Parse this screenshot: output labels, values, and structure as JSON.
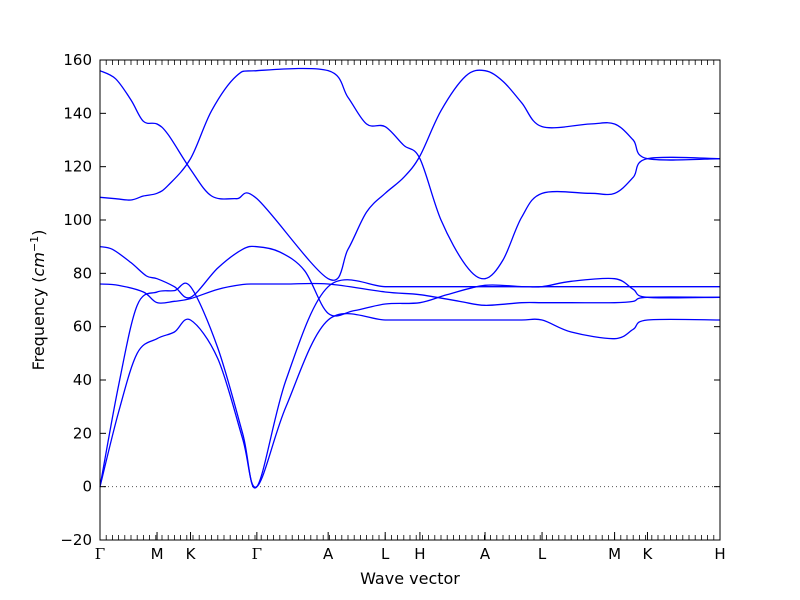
{
  "chart_data": {
    "type": "line",
    "xlabel": "Wave vector",
    "ylabel": "Frequency",
    "ylabel_unit": "cm",
    "ylabel_unit_exp": "−1",
    "ylim": [
      -20,
      160
    ],
    "yticks": [
      -20,
      0,
      20,
      40,
      60,
      80,
      100,
      120,
      140,
      160
    ],
    "ytick_labels": [
      "−20",
      "0",
      "20",
      "40",
      "60",
      "80",
      "100",
      "120",
      "140",
      "160"
    ],
    "xlim": [
      0,
      1
    ],
    "xticks": [
      {
        "pos": 0.0,
        "label": "Γ"
      },
      {
        "pos": 0.092,
        "label": "M"
      },
      {
        "pos": 0.146,
        "label": "K"
      },
      {
        "pos": 0.253,
        "label": "Γ"
      },
      {
        "pos": 0.368,
        "label": "A"
      },
      {
        "pos": 0.46,
        "label": "L"
      },
      {
        "pos": 0.516,
        "label": "H"
      },
      {
        "pos": 0.621,
        "label": "A"
      },
      {
        "pos": 0.713,
        "label": "L"
      },
      {
        "pos": 0.83,
        "label": "M"
      },
      {
        "pos": 0.883,
        "label": "K"
      },
      {
        "pos": 1.0,
        "label": "H"
      }
    ],
    "zero_line": true,
    "line_color": "#0000ff",
    "zero_line_color": "#555555",
    "series": [
      {
        "x": [
          0,
          0.025,
          0.05,
          0.07,
          0.092,
          0.11,
          0.146,
          0.18,
          0.22,
          0.253,
          0.368,
          0.4,
          0.43,
          0.46,
          0.49,
          0.516,
          0.55,
          0.59,
          0.621,
          0.65,
          0.68,
          0.713,
          0.79,
          0.83,
          0.86,
          0.883,
          1.0
        ],
        "values": [
          156,
          153,
          145,
          137,
          136,
          132,
          119,
          109,
          108,
          108,
          78,
          89,
          103,
          110,
          116,
          124,
          141,
          154,
          156,
          152,
          144,
          135,
          136,
          136,
          130,
          123,
          123
        ]
      },
      {
        "x": [
          0,
          0.025,
          0.05,
          0.07,
          0.092,
          0.11,
          0.146,
          0.18,
          0.22,
          0.253,
          0.368,
          0.4,
          0.43,
          0.46,
          0.49,
          0.516,
          0.55,
          0.59,
          0.621,
          0.65,
          0.68,
          0.713,
          0.79,
          0.83,
          0.86,
          0.883,
          1.0
        ],
        "values": [
          108.5,
          108,
          107.5,
          109,
          110,
          113,
          123,
          141,
          154,
          156,
          156,
          146,
          136,
          135,
          128,
          123,
          100,
          83,
          78,
          85,
          101,
          110,
          110,
          110,
          116,
          123,
          123
        ]
      },
      {
        "x": [
          0,
          0.02,
          0.05,
          0.075,
          0.092,
          0.12,
          0.146,
          0.19,
          0.23,
          0.253,
          0.29,
          0.33,
          0.368,
          0.41,
          0.46,
          0.516,
          0.56,
          0.621,
          0.68,
          0.713,
          0.77,
          0.83,
          0.86,
          0.883,
          1.0
        ],
        "values": [
          90,
          89,
          84,
          79,
          78,
          75,
          71,
          82,
          89,
          90,
          88,
          81,
          65,
          66,
          68.5,
          69,
          72,
          75.5,
          75,
          75,
          75,
          75,
          75,
          75,
          75
        ]
      },
      {
        "x": [
          0,
          0.03,
          0.07,
          0.092,
          0.12,
          0.146,
          0.19,
          0.23,
          0.253,
          0.3,
          0.368,
          0.46,
          0.516,
          0.58,
          0.621,
          0.68,
          0.713,
          0.76,
          0.83,
          0.86,
          0.883,
          1.0
        ],
        "values": [
          76,
          75.5,
          73,
          69,
          69.5,
          70.5,
          74,
          75.8,
          76,
          76,
          76,
          73,
          72,
          69.5,
          68,
          69,
          69,
          69,
          69,
          69.5,
          71,
          71
        ]
      },
      {
        "x": [
          0,
          0.03,
          0.06,
          0.092,
          0.12,
          0.146,
          0.19,
          0.23,
          0.253,
          0.3,
          0.368,
          0.46,
          0.516,
          0.58,
          0.621,
          0.68,
          0.713,
          0.76,
          0.83,
          0.86,
          0.883,
          1.0
        ],
        "values": [
          0,
          38,
          68,
          73,
          73.5,
          75,
          52,
          20,
          0,
          40,
          75,
          75,
          75,
          75,
          75,
          75,
          75,
          77,
          78,
          74,
          71,
          71
        ]
      },
      {
        "x": [
          0,
          0.03,
          0.06,
          0.092,
          0.12,
          0.146,
          0.19,
          0.23,
          0.253,
          0.3,
          0.368,
          0.46,
          0.516,
          0.58,
          0.621,
          0.68,
          0.713,
          0.76,
          0.83,
          0.86,
          0.883,
          1.0
        ],
        "values": [
          0,
          28,
          50,
          55.5,
          58,
          62.5,
          48,
          18,
          0,
          30,
          62.5,
          62.5,
          62.5,
          62.5,
          62.5,
          62.5,
          62.5,
          58,
          55.5,
          59,
          62.5,
          62.5
        ]
      }
    ]
  }
}
